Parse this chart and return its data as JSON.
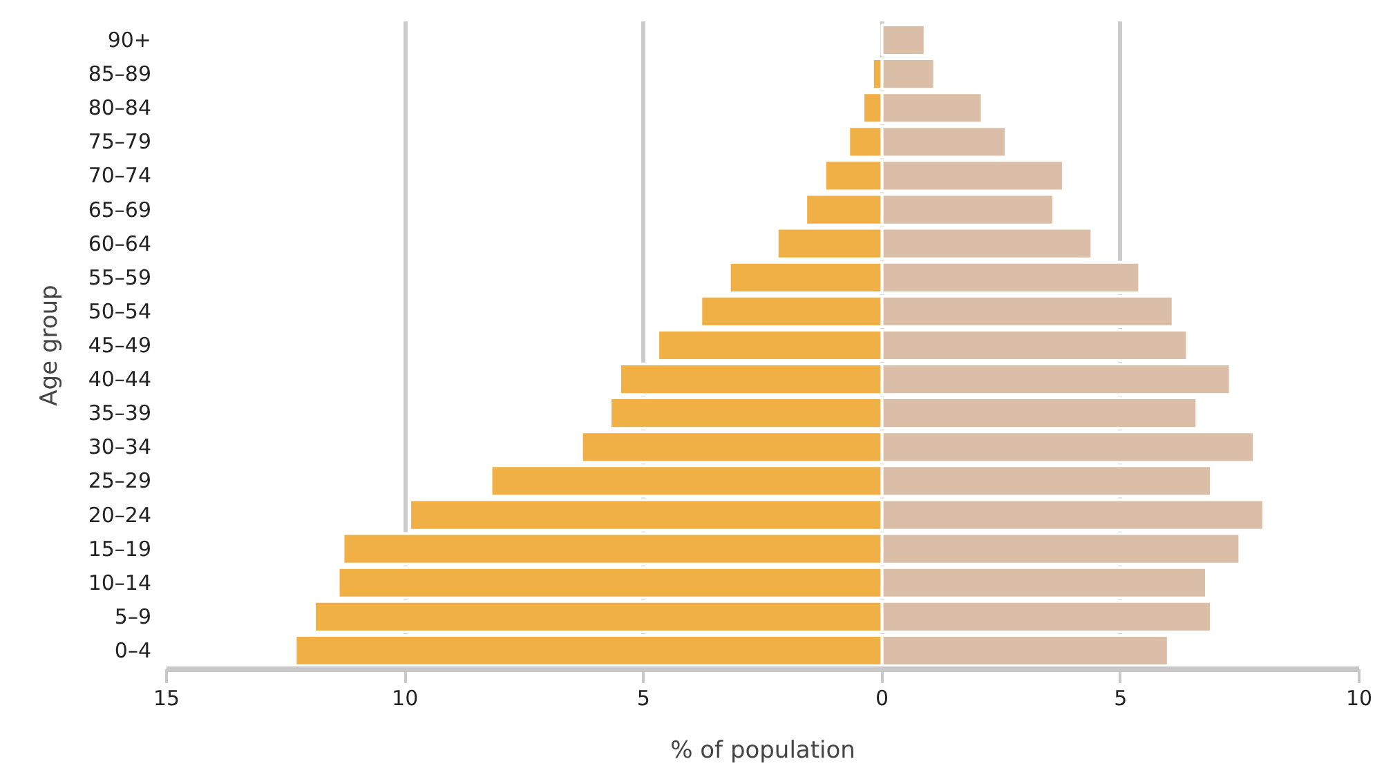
{
  "chart_data": {
    "type": "bar",
    "orientation": "horizontal",
    "xlabel": "% of population",
    "ylabel": "Age group",
    "categories": [
      "90+",
      "85–89",
      "80–84",
      "75–79",
      "70–74",
      "65–69",
      "60–64",
      "55–59",
      "50–54",
      "45–49",
      "40–44",
      "35–39",
      "30–34",
      "25–29",
      "20–24",
      "15–19",
      "10–14",
      "5–9",
      "0–4"
    ],
    "series": [
      {
        "color": "#f0b046",
        "values": [
          null,
          -0.2,
          -0.4,
          -0.7,
          -1.2,
          -1.6,
          -2.2,
          -3.2,
          -3.8,
          -4.7,
          -5.5,
          -5.7,
          -6.3,
          -8.2,
          -9.9,
          -11.3,
          -11.4,
          -11.9,
          -12.3
        ]
      },
      {
        "color": "#dbbea8",
        "values": [
          0.9,
          1.1,
          2.1,
          2.6,
          3.8,
          3.6,
          4.4,
          5.4,
          6.1,
          6.4,
          7.3,
          6.6,
          7.8,
          6.9,
          8.0,
          7.5,
          6.8,
          6.9,
          6.0
        ]
      }
    ],
    "xlim": [
      -15,
      10
    ],
    "xticks": [
      {
        "value": -15,
        "label": "15"
      },
      {
        "value": -10,
        "label": "10"
      },
      {
        "value": -5,
        "label": "5"
      },
      0,
      5,
      10
    ],
    "grid": "x",
    "stacked": true
  }
}
